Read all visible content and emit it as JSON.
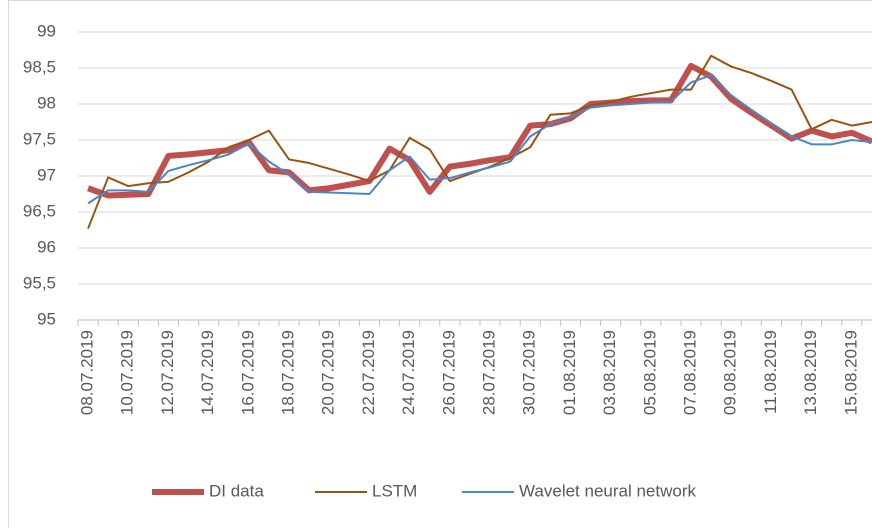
{
  "chart_data": {
    "type": "line",
    "categories": [
      "08.07.2019",
      null,
      "10.07.2019",
      null,
      "12.07.2019",
      null,
      "14.07.2019",
      null,
      "16.07.2019",
      null,
      "18.07.2019",
      null,
      "20.07.2019",
      null,
      "22.07.2019",
      null,
      "24.07.2019",
      null,
      "26.07.2019",
      null,
      "28.07.2019",
      null,
      "30.07.2019",
      null,
      "01.08.2019",
      null,
      "03.08.2019",
      null,
      "05.08.2019",
      null,
      "07.08.2019",
      null,
      "09.08.2019",
      null,
      "11.08.2019",
      null,
      "13.08.2019",
      null,
      "15.08.2019",
      null
    ],
    "series": [
      {
        "name": "DI data",
        "color": "#c0504d",
        "width": 6,
        "values": [
          96.83,
          96.73,
          96.74,
          96.75,
          97.28,
          97.3,
          97.33,
          97.36,
          97.47,
          97.08,
          97.05,
          96.8,
          96.83,
          96.88,
          96.93,
          97.38,
          97.22,
          96.78,
          97.13,
          97.17,
          97.22,
          97.26,
          97.7,
          97.72,
          97.8,
          98.0,
          98.02,
          98.04,
          98.05,
          98.05,
          98.53,
          98.38,
          98.07,
          97.88,
          97.7,
          97.52,
          97.63,
          97.55,
          97.6,
          97.48
        ]
      },
      {
        "name": "LSTM",
        "color": "#99540f",
        "width": 2,
        "values": [
          96.27,
          96.98,
          96.86,
          96.9,
          96.92,
          97.05,
          97.2,
          97.4,
          97.5,
          97.63,
          97.23,
          97.18,
          97.1,
          97.02,
          96.93,
          97.08,
          97.53,
          97.37,
          96.93,
          97.03,
          97.13,
          97.25,
          97.4,
          97.85,
          97.87,
          97.98,
          98.03,
          98.1,
          98.15,
          98.2,
          98.2,
          98.67,
          98.52,
          98.43,
          98.32,
          98.2,
          97.65,
          97.78,
          97.7,
          97.75
        ]
      },
      {
        "name": "Wavelet neural network",
        "color": "#4a86c8",
        "width": 2,
        "values": [
          96.62,
          96.8,
          96.8,
          96.78,
          97.07,
          97.15,
          97.22,
          97.3,
          97.45,
          97.2,
          97.02,
          96.78,
          96.77,
          96.76,
          96.75,
          97.08,
          97.27,
          96.95,
          96.97,
          97.05,
          97.12,
          97.2,
          97.55,
          97.72,
          97.82,
          97.95,
          97.98,
          98.0,
          98.02,
          98.03,
          98.3,
          98.4,
          98.12,
          97.92,
          97.73,
          97.55,
          97.44,
          97.44,
          97.5,
          97.47
        ]
      }
    ],
    "ylim": [
      95,
      99
    ],
    "yticks": [
      95,
      {
        "value": 95.5,
        "label": "95,5"
      },
      96,
      {
        "value": 96.5,
        "label": "96,5"
      },
      97,
      {
        "value": 97.5,
        "label": "97,5"
      },
      98,
      {
        "value": 98.5,
        "label": "98,5"
      },
      99
    ],
    "grid": true,
    "legend": "bottom"
  }
}
